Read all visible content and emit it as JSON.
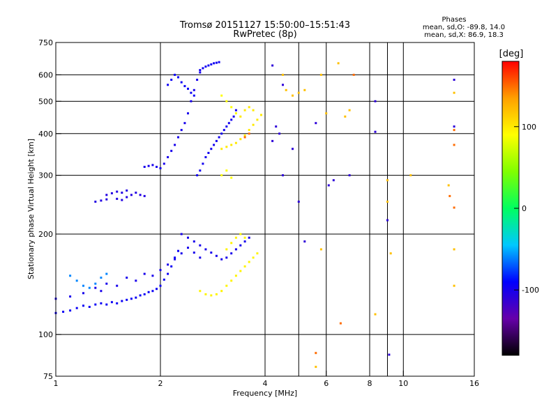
{
  "chart_data": {
    "type": "scatter",
    "title": "Tromsø 20151127 15:50:00–15:51:43",
    "subtitle": "RwPretec (8p)",
    "xlabel": "Frequency [MHz]",
    "ylabel": "Stationary phase Virtual Height [km]",
    "x_scale": "log2",
    "y_scale": "log",
    "xlim": [
      1,
      16
    ],
    "ylim": [
      75,
      750
    ],
    "x_ticks": [
      1,
      2,
      4,
      6,
      8,
      10,
      16
    ],
    "x_gridlines": [
      1,
      2,
      4,
      5,
      6,
      8,
      9,
      10,
      16
    ],
    "y_ticks": [
      75,
      100,
      200,
      300,
      400,
      500,
      600,
      750
    ],
    "y_gridlines": [
      100,
      200,
      300,
      400,
      500,
      600
    ],
    "grid": true,
    "info": {
      "heading": "Phases",
      "line1": "mean, sd,O: -89.8, 14.0",
      "line2": "mean, sd,X:  86.9, 18.3"
    },
    "colorbar": {
      "label": "[deg]",
      "range": [
        -180,
        180
      ],
      "ticks": [
        -100,
        0,
        100
      ],
      "colors": [
        "#000000",
        "#6600aa",
        "#0000ff",
        "#00c8ff",
        "#00ff60",
        "#80ff00",
        "#ffff00",
        "#ffa000",
        "#ff0000"
      ]
    },
    "series": [
      {
        "phase": -95,
        "points": [
          [
            1.0,
            116
          ],
          [
            1.05,
            117
          ],
          [
            1.1,
            118
          ],
          [
            1.15,
            120
          ],
          [
            1.2,
            122
          ],
          [
            1.25,
            121
          ],
          [
            1.3,
            123
          ],
          [
            1.35,
            124
          ],
          [
            1.4,
            123
          ],
          [
            1.45,
            125
          ],
          [
            1.5,
            124
          ],
          [
            1.55,
            126
          ],
          [
            1.6,
            127
          ],
          [
            1.65,
            128
          ],
          [
            1.7,
            129
          ],
          [
            1.75,
            131
          ],
          [
            1.8,
            132
          ],
          [
            1.85,
            134
          ],
          [
            1.9,
            135
          ],
          [
            1.95,
            137
          ],
          [
            2.0,
            140
          ],
          [
            2.05,
            146
          ],
          [
            2.1,
            152
          ],
          [
            2.15,
            160
          ],
          [
            2.2,
            170
          ],
          [
            2.25,
            178
          ]
        ]
      },
      {
        "phase": -100,
        "points": [
          [
            1.0,
            128
          ],
          [
            1.1,
            130
          ],
          [
            1.2,
            133
          ],
          [
            1.3,
            138
          ],
          [
            1.35,
            135
          ],
          [
            1.4,
            142
          ],
          [
            1.5,
            140
          ],
          [
            1.6,
            148
          ],
          [
            1.7,
            145
          ],
          [
            1.8,
            152
          ],
          [
            1.9,
            150
          ],
          [
            2.0,
            156
          ],
          [
            2.1,
            162
          ],
          [
            2.2,
            168
          ],
          [
            2.3,
            175
          ],
          [
            2.4,
            182
          ],
          [
            2.5,
            176
          ],
          [
            2.6,
            170
          ]
        ]
      },
      {
        "phase": -105,
        "points": [
          [
            1.3,
            250
          ],
          [
            1.35,
            252
          ],
          [
            1.4,
            254
          ],
          [
            1.5,
            255
          ],
          [
            1.55,
            253
          ],
          [
            1.6,
            258
          ],
          [
            1.65,
            262
          ],
          [
            1.7,
            266
          ],
          [
            1.75,
            262
          ],
          [
            1.8,
            260
          ],
          [
            1.4,
            262
          ],
          [
            1.45,
            265
          ],
          [
            1.5,
            268
          ],
          [
            1.55,
            266
          ],
          [
            1.6,
            270
          ]
        ]
      },
      {
        "phase": -100,
        "points": [
          [
            1.8,
            318
          ],
          [
            1.85,
            320
          ],
          [
            1.9,
            322
          ],
          [
            1.95,
            318
          ],
          [
            2.0,
            315
          ],
          [
            2.05,
            325
          ],
          [
            2.1,
            340
          ],
          [
            2.15,
            355
          ],
          [
            2.2,
            370
          ],
          [
            2.25,
            390
          ],
          [
            2.3,
            410
          ],
          [
            2.35,
            430
          ],
          [
            2.4,
            460
          ],
          [
            2.45,
            500
          ],
          [
            2.5,
            540
          ],
          [
            2.55,
            580
          ],
          [
            2.6,
            610
          ]
        ]
      },
      {
        "phase": -98,
        "points": [
          [
            2.55,
            300
          ],
          [
            2.6,
            310
          ],
          [
            2.65,
            325
          ],
          [
            2.7,
            340
          ],
          [
            2.75,
            350
          ],
          [
            2.8,
            360
          ],
          [
            2.85,
            370
          ],
          [
            2.9,
            380
          ],
          [
            2.95,
            390
          ],
          [
            3.0,
            400
          ],
          [
            3.05,
            410
          ],
          [
            3.1,
            420
          ],
          [
            3.15,
            430
          ],
          [
            3.2,
            440
          ],
          [
            3.25,
            450
          ],
          [
            3.3,
            470
          ]
        ]
      },
      {
        "phase": -97,
        "points": [
          [
            2.6,
            620
          ],
          [
            2.65,
            628
          ],
          [
            2.7,
            635
          ],
          [
            2.75,
            640
          ],
          [
            2.8,
            645
          ],
          [
            2.85,
            650
          ],
          [
            2.9,
            652
          ],
          [
            2.95,
            655
          ]
        ]
      },
      {
        "phase": -95,
        "points": [
          [
            2.1,
            560
          ],
          [
            2.15,
            580
          ],
          [
            2.2,
            600
          ],
          [
            2.25,
            590
          ],
          [
            2.3,
            570
          ],
          [
            2.35,
            555
          ],
          [
            2.4,
            545
          ],
          [
            2.45,
            530
          ],
          [
            2.5,
            520
          ]
        ]
      },
      {
        "phase": -100,
        "points": [
          [
            2.3,
            200
          ],
          [
            2.4,
            195
          ],
          [
            2.5,
            190
          ],
          [
            2.6,
            185
          ],
          [
            2.7,
            180
          ],
          [
            2.8,
            176
          ],
          [
            2.9,
            172
          ],
          [
            3.0,
            168
          ],
          [
            3.1,
            170
          ],
          [
            3.2,
            175
          ],
          [
            3.3,
            180
          ],
          [
            3.4,
            185
          ],
          [
            3.5,
            190
          ],
          [
            3.6,
            195
          ]
        ]
      },
      {
        "phase": -60,
        "points": [
          [
            1.1,
            150
          ],
          [
            1.15,
            145
          ],
          [
            1.2,
            140
          ],
          [
            1.25,
            138
          ],
          [
            1.3,
            142
          ],
          [
            1.35,
            148
          ],
          [
            1.4,
            152
          ]
        ]
      },
      {
        "phase": 95,
        "points": [
          [
            2.6,
            135
          ],
          [
            2.7,
            132
          ],
          [
            2.8,
            131
          ],
          [
            2.9,
            132
          ],
          [
            3.0,
            135
          ],
          [
            3.1,
            140
          ],
          [
            3.2,
            145
          ],
          [
            3.3,
            150
          ],
          [
            3.4,
            155
          ],
          [
            3.5,
            160
          ],
          [
            3.6,
            165
          ],
          [
            3.7,
            170
          ],
          [
            3.8,
            175
          ],
          [
            3.1,
            180
          ],
          [
            3.2,
            188
          ],
          [
            3.3,
            195
          ],
          [
            3.4,
            200
          ],
          [
            3.5,
            195
          ]
        ]
      },
      {
        "phase": 100,
        "points": [
          [
            3.0,
            360
          ],
          [
            3.1,
            365
          ],
          [
            3.2,
            370
          ],
          [
            3.3,
            375
          ],
          [
            3.4,
            385
          ],
          [
            3.5,
            395
          ],
          [
            3.6,
            410
          ],
          [
            3.7,
            425
          ],
          [
            3.8,
            440
          ],
          [
            3.9,
            455
          ],
          [
            3.4,
            450
          ],
          [
            3.5,
            470
          ],
          [
            3.6,
            480
          ],
          [
            3.7,
            470
          ]
        ]
      },
      {
        "phase": 90,
        "points": [
          [
            3.0,
            520
          ],
          [
            3.1,
            500
          ],
          [
            3.2,
            480
          ],
          [
            3.3,
            460
          ],
          [
            3.0,
            300
          ],
          [
            3.1,
            310
          ],
          [
            3.2,
            295
          ]
        ]
      },
      {
        "phase": -110,
        "points": [
          [
            4.2,
            380
          ],
          [
            4.4,
            400
          ],
          [
            4.2,
            640
          ],
          [
            4.5,
            560
          ],
          [
            4.3,
            420
          ],
          [
            4.8,
            360
          ],
          [
            5.0,
            250
          ],
          [
            5.2,
            190
          ],
          [
            5.6,
            430
          ],
          [
            6.1,
            280
          ],
          [
            6.3,
            290
          ],
          [
            7.0,
            300
          ],
          [
            8.3,
            405
          ],
          [
            9.0,
            220
          ],
          [
            9.1,
            87
          ],
          [
            8.3,
            500
          ],
          [
            14.0,
            420
          ],
          [
            14.0,
            580
          ],
          [
            4.5,
            300
          ]
        ]
      },
      {
        "phase": 120,
        "points": [
          [
            4.5,
            600
          ],
          [
            4.6,
            540
          ],
          [
            4.8,
            520
          ],
          [
            5.0,
            530
          ],
          [
            5.2,
            540
          ],
          [
            5.8,
            600
          ],
          [
            6.0,
            460
          ],
          [
            6.5,
            650
          ],
          [
            6.8,
            450
          ],
          [
            7.0,
            470
          ],
          [
            9.0,
            290
          ],
          [
            9.0,
            250
          ],
          [
            9.2,
            175
          ],
          [
            10.5,
            300
          ],
          [
            13.5,
            280
          ],
          [
            14.0,
            530
          ],
          [
            14.0,
            180
          ],
          [
            14.0,
            140
          ],
          [
            5.8,
            180
          ],
          [
            8.3,
            115
          ],
          [
            5.6,
            80
          ]
        ]
      },
      {
        "phase": 150,
        "points": [
          [
            5.6,
            88
          ],
          [
            6.6,
            108
          ],
          [
            7.2,
            600
          ],
          [
            13.6,
            260
          ],
          [
            14.0,
            240
          ],
          [
            14.0,
            410
          ],
          [
            14.0,
            370
          ],
          [
            3.5,
            390
          ],
          [
            3.6,
            400
          ]
        ]
      }
    ]
  }
}
